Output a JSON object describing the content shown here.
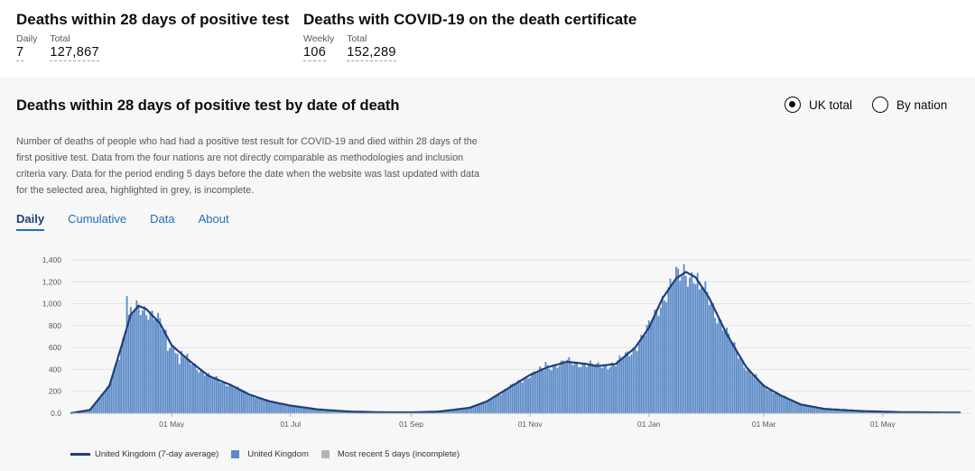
{
  "headlines": [
    {
      "title": "Deaths within 28 days of positive test",
      "metrics": [
        {
          "label": "Daily",
          "value": "7"
        },
        {
          "label": "Total",
          "value": "127,867"
        }
      ]
    },
    {
      "title": "Deaths with COVID-19 on the death certificate",
      "metrics": [
        {
          "label": "Weekly",
          "value": "106"
        },
        {
          "label": "Total",
          "value": "152,289"
        }
      ]
    }
  ],
  "card": {
    "title": "Deaths within 28 days of positive test by date of death",
    "radio": [
      {
        "label": "UK total",
        "selected": true
      },
      {
        "label": "By nation",
        "selected": false
      }
    ],
    "description": "Number of deaths of people who had had a positive test result for COVID-19 and died within 28 days of the first positive test. Data from the four nations are not directly comparable as methodologies and inclusion criteria vary. Data for the period ending 5 days before the date when the website was last updated with data for the selected area, highlighted in grey, is incomplete.",
    "tabs": [
      {
        "label": "Daily",
        "active": true
      },
      {
        "label": "Cumulative",
        "active": false
      },
      {
        "label": "Data",
        "active": false
      },
      {
        "label": "About",
        "active": false
      }
    ]
  },
  "colors": {
    "bar": "#5b8ac7",
    "line": "#1d3f7a",
    "incomplete": "#b1b4b6",
    "link": "#1d70b8",
    "background": "#f7f7f7"
  },
  "chart_data": {
    "type": "bar",
    "ylim": [
      0,
      1400
    ],
    "yticks": [
      "0.0",
      "200",
      "400",
      "600",
      "800",
      "1,000",
      "1,200",
      "1,400"
    ],
    "ytick_values": [
      0,
      200,
      400,
      600,
      800,
      1000,
      1200,
      1400
    ],
    "xticks": [
      "01 May",
      "01 Jul",
      "01 Sep",
      "01 Nov",
      "01 Jan",
      "01 Mar",
      "01 May"
    ],
    "grid": true,
    "series": [
      {
        "name": "United Kingdom (7-day average)",
        "kind": "line"
      },
      {
        "name": "United Kingdom",
        "kind": "bar"
      },
      {
        "name": "Most recent 5 days (incomplete)",
        "kind": "bar"
      }
    ],
    "shape_points": [
      [
        "2020-03-10",
        0
      ],
      [
        "2020-03-20",
        30
      ],
      [
        "2020-03-30",
        250
      ],
      [
        "2020-04-05",
        600
      ],
      [
        "2020-04-10",
        900
      ],
      [
        "2020-04-14",
        980
      ],
      [
        "2020-04-18",
        950
      ],
      [
        "2020-04-25",
        820
      ],
      [
        "2020-05-01",
        620
      ],
      [
        "2020-05-10",
        480
      ],
      [
        "2020-05-20",
        340
      ],
      [
        "2020-05-31",
        260
      ],
      [
        "2020-06-10",
        170
      ],
      [
        "2020-06-20",
        110
      ],
      [
        "2020-07-01",
        70
      ],
      [
        "2020-07-15",
        35
      ],
      [
        "2020-08-01",
        15
      ],
      [
        "2020-08-20",
        8
      ],
      [
        "2020-09-01",
        8
      ],
      [
        "2020-09-15",
        15
      ],
      [
        "2020-10-01",
        50
      ],
      [
        "2020-10-10",
        110
      ],
      [
        "2020-10-20",
        220
      ],
      [
        "2020-11-01",
        350
      ],
      [
        "2020-11-10",
        420
      ],
      [
        "2020-11-20",
        470
      ],
      [
        "2020-11-30",
        450
      ],
      [
        "2020-12-05",
        430
      ],
      [
        "2020-12-15",
        450
      ],
      [
        "2020-12-25",
        600
      ],
      [
        "2021-01-01",
        780
      ],
      [
        "2021-01-08",
        1050
      ],
      [
        "2021-01-15",
        1230
      ],
      [
        "2021-01-20",
        1290
      ],
      [
        "2021-01-25",
        1240
      ],
      [
        "2021-02-01",
        1050
      ],
      [
        "2021-02-10",
        720
      ],
      [
        "2021-02-20",
        420
      ],
      [
        "2021-03-01",
        250
      ],
      [
        "2021-03-10",
        160
      ],
      [
        "2021-03-20",
        80
      ],
      [
        "2021-04-01",
        40
      ],
      [
        "2021-04-20",
        20
      ],
      [
        "2021-05-10",
        10
      ],
      [
        "2021-05-31",
        7
      ],
      [
        "2021-06-10",
        7
      ]
    ],
    "spikes": [
      [
        "2020-04-08",
        1070
      ],
      [
        "2020-04-29",
        570
      ],
      [
        "2020-05-05",
        450
      ],
      [
        "2020-11-09",
        470
      ],
      [
        "2020-11-17",
        480
      ],
      [
        "2020-11-24",
        470
      ],
      [
        "2021-01-19",
        1360
      ],
      [
        "2021-01-27",
        1130
      ],
      [
        "2021-02-04",
        870
      ]
    ],
    "incomplete_days": 5
  },
  "legend": [
    {
      "label": "United Kingdom (7-day average)"
    },
    {
      "label": "United Kingdom"
    },
    {
      "label": "Most recent 5 days (incomplete)"
    }
  ]
}
